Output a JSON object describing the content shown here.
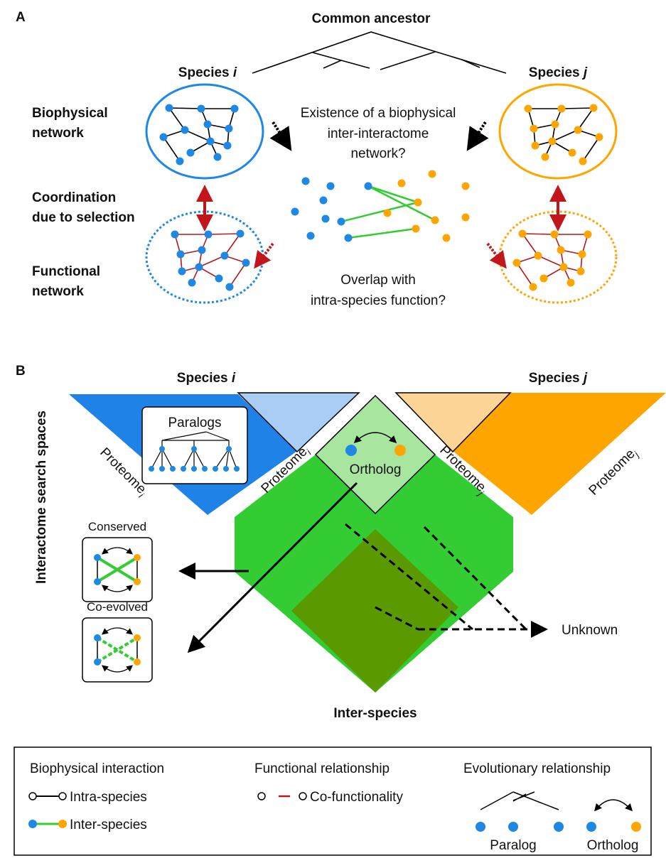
{
  "panel_a": {
    "label": "A",
    "common_ancestor": "Common ancestor",
    "species_i": {
      "name": "Species",
      "index": "i"
    },
    "species_j": {
      "name": "Species",
      "index": "j"
    },
    "row_labels": [
      [
        "Biophysical",
        "network"
      ],
      [
        "Coordination",
        "due to selection"
      ],
      [
        "Functional",
        "network"
      ]
    ],
    "question_top": [
      "Existence of a biophysical",
      "inter-interactome",
      "network?"
    ],
    "question_bottom": [
      "Overlap with",
      "intra-species function?"
    ]
  },
  "panel_b": {
    "label": "B",
    "species_i": {
      "name": "Species",
      "index": "i"
    },
    "species_j": {
      "name": "Species",
      "index": "j"
    },
    "axis_label": "Interactome search spaces",
    "paralogs": "Paralogs",
    "proteomes": [
      {
        "name": "Proteome",
        "index": "i"
      },
      {
        "name": "Proteome",
        "index": "i"
      },
      {
        "name": "Proteome",
        "index": "j"
      },
      {
        "name": "Proteome",
        "index": "j"
      }
    ],
    "ortholog": "Ortholog",
    "conserved": "Conserved",
    "co_evolved": "Co-evolved",
    "unknown": "Unknown",
    "inter_species": "Inter-species"
  },
  "legend": {
    "biophysical": {
      "title": "Biophysical interaction",
      "intra": "Intra-species",
      "inter": "Inter-species"
    },
    "functional": {
      "title": "Functional relationship",
      "co": "Co-functionality"
    },
    "evolutionary": {
      "title": "Evolutionary relationship",
      "paralog": "Paralog",
      "ortholog": "Ortholog"
    }
  }
}
